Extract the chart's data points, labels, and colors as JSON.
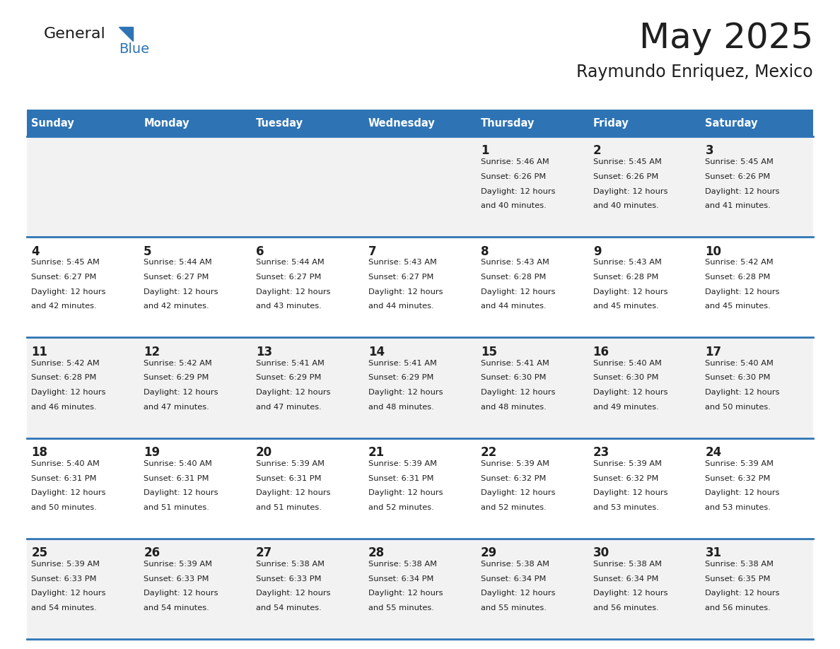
{
  "title": "May 2025",
  "subtitle": "Raymundo Enriquez, Mexico",
  "days_of_week": [
    "Sunday",
    "Monday",
    "Tuesday",
    "Wednesday",
    "Thursday",
    "Friday",
    "Saturday"
  ],
  "header_bg": "#2E74B5",
  "header_text": "#FFFFFF",
  "row_bg_odd": "#F2F2F2",
  "row_bg_even": "#FFFFFF",
  "cell_border": "#2E74B5",
  "day_number_color": "#1F1F1F",
  "info_text_color": "#1F1F1F",
  "title_color": "#1F1F1F",
  "subtitle_color": "#1F1F1F",
  "logo_general_color": "#1a1a1a",
  "logo_blue_color": "#2E74B5",
  "calendar": [
    [
      null,
      null,
      null,
      null,
      {
        "day": 1,
        "sunrise": "5:46 AM",
        "sunset": "6:26 PM",
        "daylight": "12 hours",
        "daylight2": "and 40 minutes."
      },
      {
        "day": 2,
        "sunrise": "5:45 AM",
        "sunset": "6:26 PM",
        "daylight": "12 hours",
        "daylight2": "and 40 minutes."
      },
      {
        "day": 3,
        "sunrise": "5:45 AM",
        "sunset": "6:26 PM",
        "daylight": "12 hours",
        "daylight2": "and 41 minutes."
      }
    ],
    [
      {
        "day": 4,
        "sunrise": "5:45 AM",
        "sunset": "6:27 PM",
        "daylight": "12 hours",
        "daylight2": "and 42 minutes."
      },
      {
        "day": 5,
        "sunrise": "5:44 AM",
        "sunset": "6:27 PM",
        "daylight": "12 hours",
        "daylight2": "and 42 minutes."
      },
      {
        "day": 6,
        "sunrise": "5:44 AM",
        "sunset": "6:27 PM",
        "daylight": "12 hours",
        "daylight2": "and 43 minutes."
      },
      {
        "day": 7,
        "sunrise": "5:43 AM",
        "sunset": "6:27 PM",
        "daylight": "12 hours",
        "daylight2": "and 44 minutes."
      },
      {
        "day": 8,
        "sunrise": "5:43 AM",
        "sunset": "6:28 PM",
        "daylight": "12 hours",
        "daylight2": "and 44 minutes."
      },
      {
        "day": 9,
        "sunrise": "5:43 AM",
        "sunset": "6:28 PM",
        "daylight": "12 hours",
        "daylight2": "and 45 minutes."
      },
      {
        "day": 10,
        "sunrise": "5:42 AM",
        "sunset": "6:28 PM",
        "daylight": "12 hours",
        "daylight2": "and 45 minutes."
      }
    ],
    [
      {
        "day": 11,
        "sunrise": "5:42 AM",
        "sunset": "6:28 PM",
        "daylight": "12 hours",
        "daylight2": "and 46 minutes."
      },
      {
        "day": 12,
        "sunrise": "5:42 AM",
        "sunset": "6:29 PM",
        "daylight": "12 hours",
        "daylight2": "and 47 minutes."
      },
      {
        "day": 13,
        "sunrise": "5:41 AM",
        "sunset": "6:29 PM",
        "daylight": "12 hours",
        "daylight2": "and 47 minutes."
      },
      {
        "day": 14,
        "sunrise": "5:41 AM",
        "sunset": "6:29 PM",
        "daylight": "12 hours",
        "daylight2": "and 48 minutes."
      },
      {
        "day": 15,
        "sunrise": "5:41 AM",
        "sunset": "6:30 PM",
        "daylight": "12 hours",
        "daylight2": "and 48 minutes."
      },
      {
        "day": 16,
        "sunrise": "5:40 AM",
        "sunset": "6:30 PM",
        "daylight": "12 hours",
        "daylight2": "and 49 minutes."
      },
      {
        "day": 17,
        "sunrise": "5:40 AM",
        "sunset": "6:30 PM",
        "daylight": "12 hours",
        "daylight2": "and 50 minutes."
      }
    ],
    [
      {
        "day": 18,
        "sunrise": "5:40 AM",
        "sunset": "6:31 PM",
        "daylight": "12 hours",
        "daylight2": "and 50 minutes."
      },
      {
        "day": 19,
        "sunrise": "5:40 AM",
        "sunset": "6:31 PM",
        "daylight": "12 hours",
        "daylight2": "and 51 minutes."
      },
      {
        "day": 20,
        "sunrise": "5:39 AM",
        "sunset": "6:31 PM",
        "daylight": "12 hours",
        "daylight2": "and 51 minutes."
      },
      {
        "day": 21,
        "sunrise": "5:39 AM",
        "sunset": "6:31 PM",
        "daylight": "12 hours",
        "daylight2": "and 52 minutes."
      },
      {
        "day": 22,
        "sunrise": "5:39 AM",
        "sunset": "6:32 PM",
        "daylight": "12 hours",
        "daylight2": "and 52 minutes."
      },
      {
        "day": 23,
        "sunrise": "5:39 AM",
        "sunset": "6:32 PM",
        "daylight": "12 hours",
        "daylight2": "and 53 minutes."
      },
      {
        "day": 24,
        "sunrise": "5:39 AM",
        "sunset": "6:32 PM",
        "daylight": "12 hours",
        "daylight2": "and 53 minutes."
      }
    ],
    [
      {
        "day": 25,
        "sunrise": "5:39 AM",
        "sunset": "6:33 PM",
        "daylight": "12 hours",
        "daylight2": "and 54 minutes."
      },
      {
        "day": 26,
        "sunrise": "5:39 AM",
        "sunset": "6:33 PM",
        "daylight": "12 hours",
        "daylight2": "and 54 minutes."
      },
      {
        "day": 27,
        "sunrise": "5:38 AM",
        "sunset": "6:33 PM",
        "daylight": "12 hours",
        "daylight2": "and 54 minutes."
      },
      {
        "day": 28,
        "sunrise": "5:38 AM",
        "sunset": "6:34 PM",
        "daylight": "12 hours",
        "daylight2": "and 55 minutes."
      },
      {
        "day": 29,
        "sunrise": "5:38 AM",
        "sunset": "6:34 PM",
        "daylight": "12 hours",
        "daylight2": "and 55 minutes."
      },
      {
        "day": 30,
        "sunrise": "5:38 AM",
        "sunset": "6:34 PM",
        "daylight": "12 hours",
        "daylight2": "and 56 minutes."
      },
      {
        "day": 31,
        "sunrise": "5:38 AM",
        "sunset": "6:35 PM",
        "daylight": "12 hours",
        "daylight2": "and 56 minutes."
      }
    ]
  ]
}
